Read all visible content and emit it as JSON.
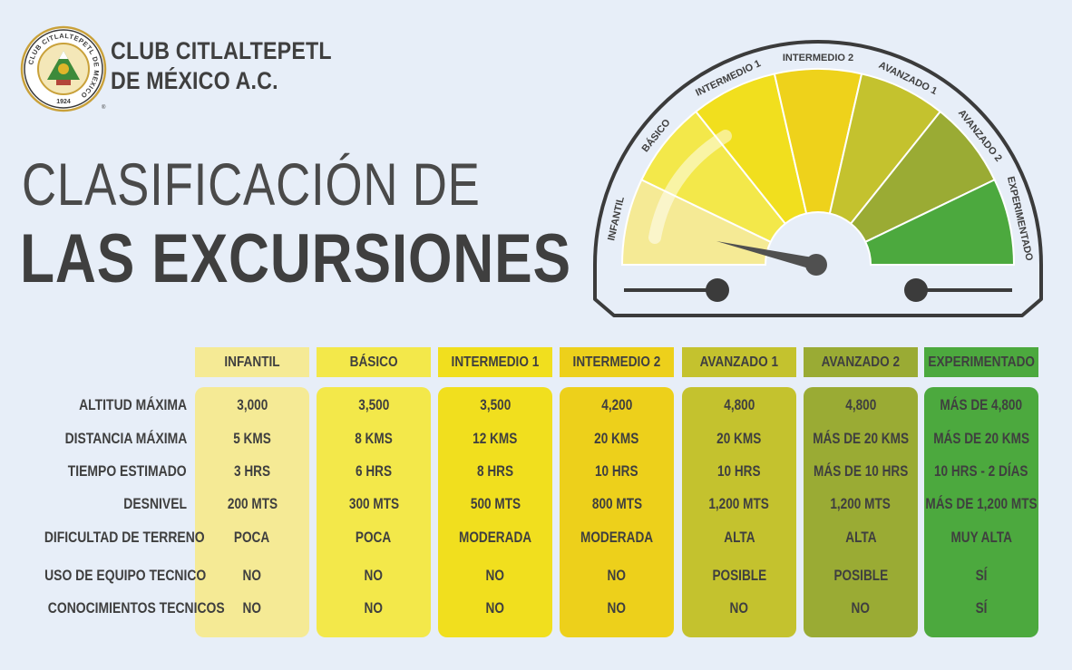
{
  "brand": {
    "name_line1": "CLUB CITLALTEPETL",
    "name_line2": "DE MÉXICO A.C.",
    "seal_text": "CLUB CITLALTEPETL DE MEXICO",
    "seal_year": "1924",
    "seal_mark": "®"
  },
  "title": {
    "line1": "CLASIFICACIÓN DE",
    "line2": "LAS EXCURSIONES"
  },
  "gauge": {
    "labels": [
      "INFANTIL",
      "BÁSICO",
      "INTERMEDIO 1",
      "INTERMEDIO 2",
      "AVANZADO 1",
      "AVANZADO 2",
      "EXPERIMENTADO"
    ],
    "colors": [
      "#f5ea95",
      "#f3e84a",
      "#f1df1e",
      "#eed21b",
      "#c4c22e",
      "#9aab34",
      "#4ca93e"
    ],
    "needle_level": "INFANTIL"
  },
  "table": {
    "columns": [
      {
        "name": "INFANTIL",
        "head_color": "#f5ea95",
        "body_color": "#f5ea95"
      },
      {
        "name": "BÁSICO",
        "head_color": "#f3e84a",
        "body_color": "#f3e84a"
      },
      {
        "name": "INTERMEDIO 1",
        "head_color": "#f1df1e",
        "body_color": "#f1df1e"
      },
      {
        "name": "INTERMEDIO 2",
        "head_color": "#edd01b",
        "body_color": "#edd01b"
      },
      {
        "name": "AVANZADO 1",
        "head_color": "#c4c22e",
        "body_color": "#c4c22e"
      },
      {
        "name": "AVANZADO 2",
        "head_color": "#9aab34",
        "body_color": "#9aab34"
      },
      {
        "name": "EXPERIMENTADO",
        "head_color": "#4ca93e",
        "body_color": "#4ca93e"
      }
    ],
    "rows": [
      {
        "label": "ALTITUD MÁXIMA",
        "values": [
          "3,000",
          "3,500",
          "3,500",
          "4,200",
          "4,800",
          "4,800",
          "MÁS DE 4,800"
        ]
      },
      {
        "label": "DISTANCIA MÁXIMA",
        "values": [
          "5 KMS",
          "8 KMS",
          "12 KMS",
          "20 KMS",
          "20 KMS",
          "MÁS DE 20 KMS",
          "MÁS DE 20 KMS"
        ]
      },
      {
        "label": "TIEMPO ESTIMADO",
        "values": [
          "3 HRS",
          "6 HRS",
          "8 HRS",
          "10 HRS",
          "10 HRS",
          "MÁS DE 10 HRS",
          "10 HRS - 2 DÍAS"
        ]
      },
      {
        "label": "DESNIVEL",
        "values": [
          "200 MTS",
          "300 MTS",
          "500 MTS",
          "800 MTS",
          "1,200 MTS",
          "1,200 MTS",
          "MÁS DE 1,200 MTS"
        ]
      },
      {
        "label": "DIFICULTAD DE TERRENO",
        "values": [
          "POCA",
          "POCA",
          "MODERADA",
          "MODERADA",
          "ALTA",
          "ALTA",
          "MUY ALTA"
        ]
      },
      {
        "label": "USO DE EQUIPO TECNICO",
        "values": [
          "NO",
          "NO",
          "NO",
          "NO",
          "POSIBLE",
          "POSIBLE",
          "SÍ"
        ]
      },
      {
        "label": "CONOCIMIENTOS TECNICOS",
        "values": [
          "NO",
          "NO",
          "NO",
          "NO",
          "NO",
          "NO",
          "SÍ"
        ]
      }
    ]
  }
}
